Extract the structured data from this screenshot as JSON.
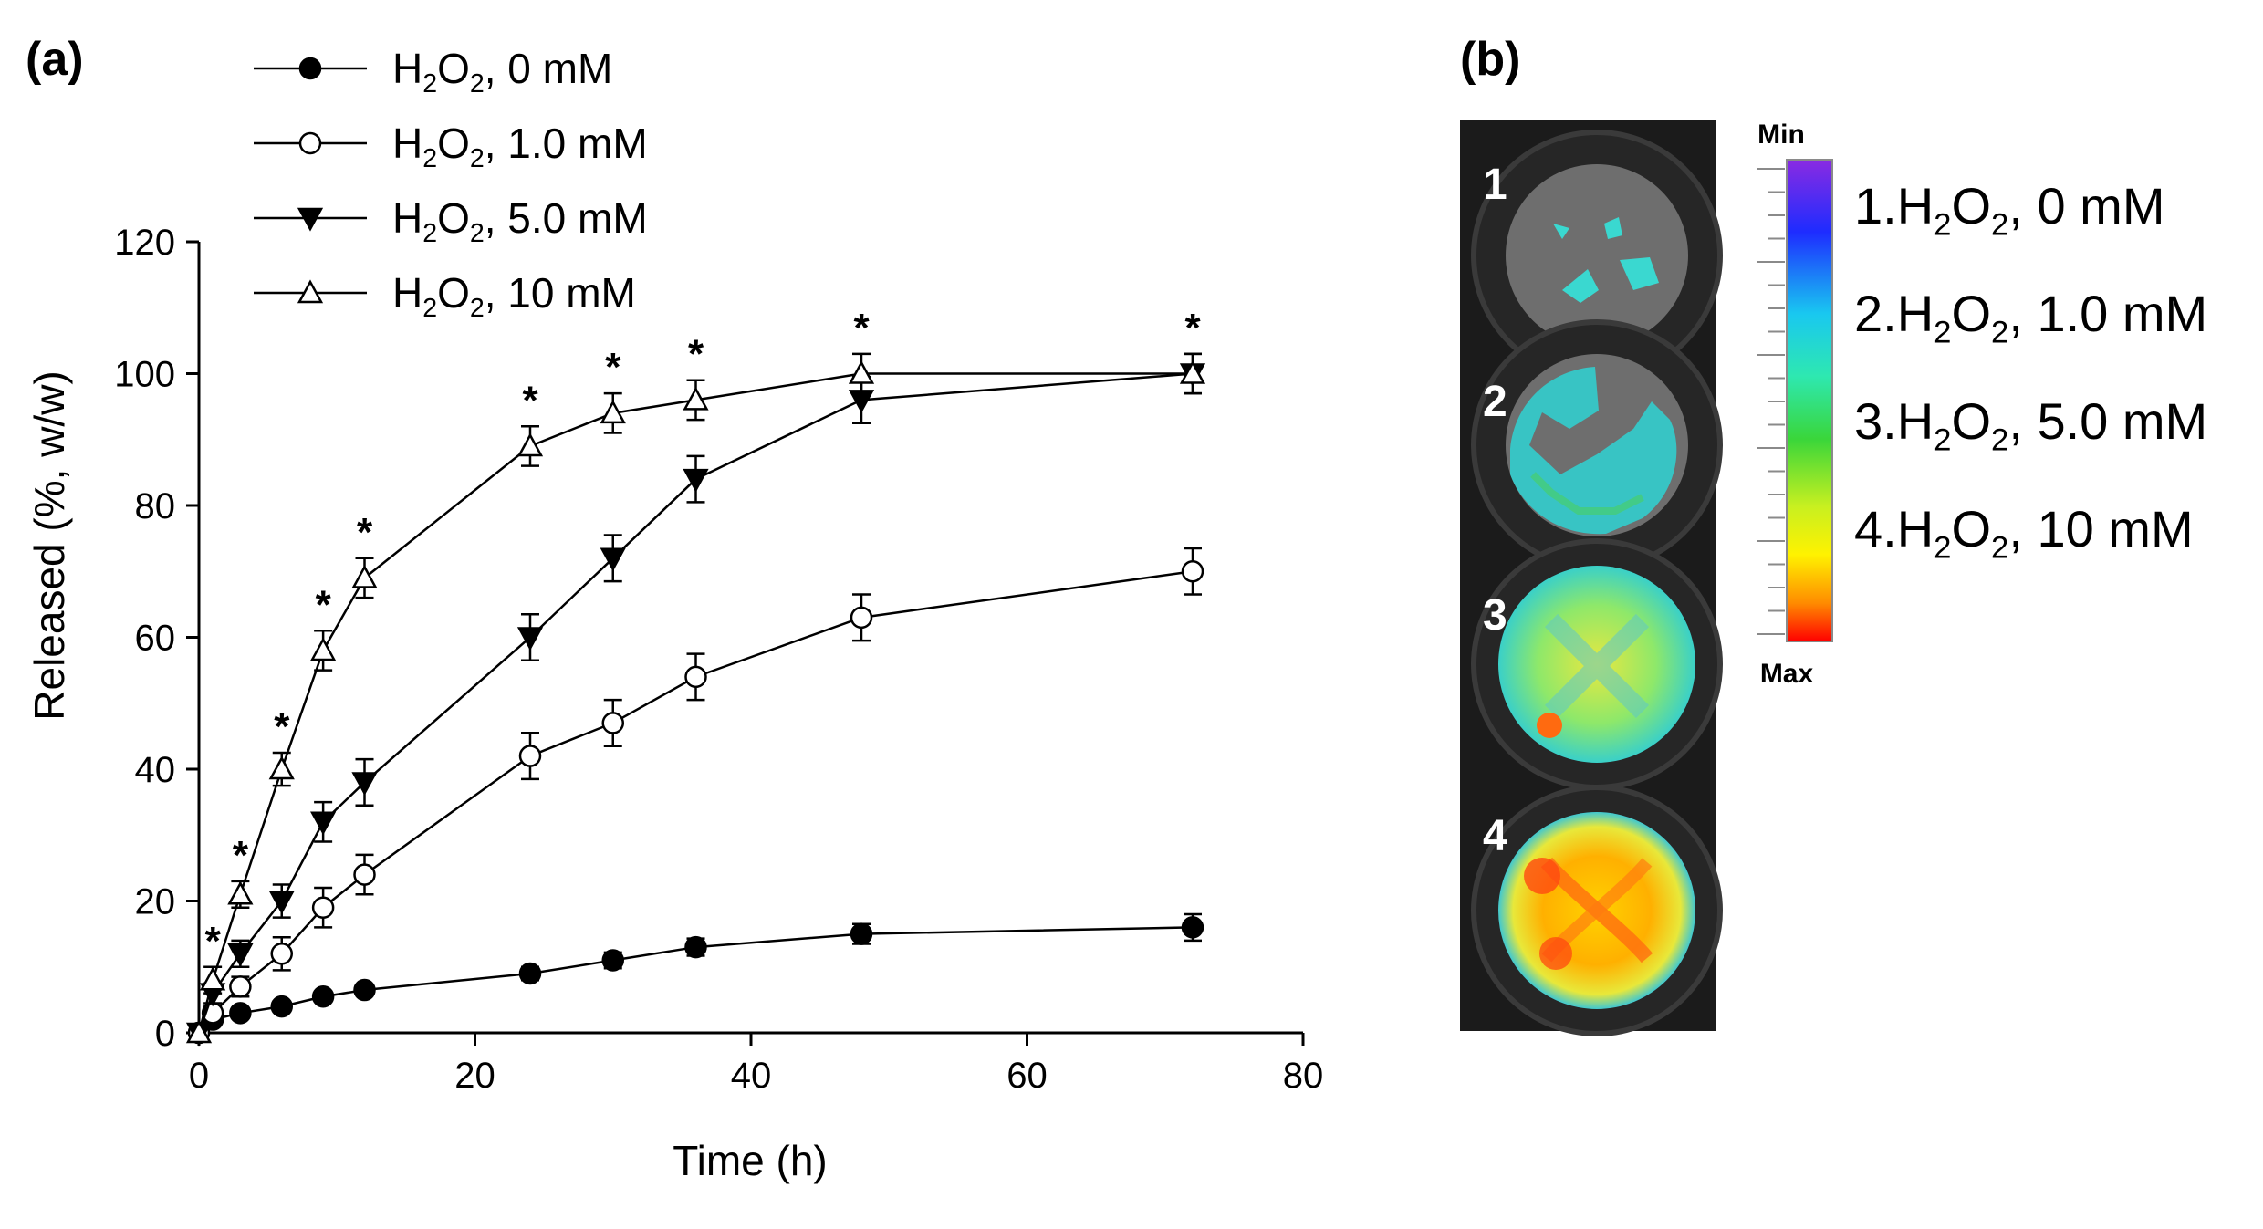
{
  "panel_a": {
    "label": "(a)",
    "legend": [
      {
        "chem_a": "H",
        "sub_a": "2",
        "chem_b": "O",
        "sub_b": "2",
        "suffix": ", 0 mM",
        "marker": "filled-circle"
      },
      {
        "chem_a": "H",
        "sub_a": "2",
        "chem_b": "O",
        "sub_b": "2",
        "suffix": ", 1.0 mM",
        "marker": "open-circle"
      },
      {
        "chem_a": "H",
        "sub_a": "2",
        "chem_b": "O",
        "sub_b": "2",
        "suffix": ", 5.0 mM",
        "marker": "filled-down-triangle"
      },
      {
        "chem_a": "H",
        "sub_a": "2",
        "chem_b": "O",
        "sub_b": "2",
        "suffix": ", 10 mM",
        "marker": "open-up-triangle"
      }
    ]
  },
  "panel_b": {
    "label": "(b)",
    "wells": [
      "1",
      "2",
      "3",
      "4"
    ],
    "colorbar": {
      "min_label": "Min",
      "max_label": "Max"
    },
    "legend": [
      {
        "num": "1.",
        "chem_a": "H",
        "sub_a": "2",
        "chem_b": "O",
        "sub_b": "2",
        "suffix": ", 0 mM"
      },
      {
        "num": "2.",
        "chem_a": "H",
        "sub_a": "2",
        "chem_b": "O",
        "sub_b": "2",
        "suffix": ", 1.0 mM"
      },
      {
        "num": "3.",
        "chem_a": "H",
        "sub_a": "2",
        "chem_b": "O",
        "sub_b": "2",
        "suffix": ", 5.0 mM"
      },
      {
        "num": "4.",
        "chem_a": "H",
        "sub_a": "2",
        "chem_b": "O",
        "sub_b": "2",
        "suffix": ", 10 mM"
      }
    ]
  },
  "chart_data": {
    "type": "line",
    "xlabel": "Time (h)",
    "ylabel": "Released (%, w/w)",
    "xlim": [
      0,
      80
    ],
    "ylim": [
      0,
      120
    ],
    "xticks": [
      0,
      20,
      40,
      60,
      80
    ],
    "yticks": [
      0,
      20,
      40,
      60,
      80,
      100,
      120
    ],
    "grid": false,
    "significance_marker": "*",
    "significance_x": [
      1,
      3,
      6,
      9,
      12,
      24,
      30,
      36,
      48,
      72
    ],
    "series": [
      {
        "name": "H2O2, 0 mM",
        "marker": "filled-circle",
        "x": [
          0,
          1,
          3,
          6,
          9,
          12,
          24,
          30,
          36,
          48,
          72
        ],
        "y": [
          0,
          2,
          3,
          4,
          5.5,
          6.5,
          9,
          11,
          13,
          15,
          16
        ],
        "err": [
          0,
          0.5,
          0.5,
          0.6,
          0.7,
          0.8,
          1,
          1.2,
          1.3,
          1.5,
          2
        ]
      },
      {
        "name": "H2O2, 1.0 mM",
        "marker": "open-circle",
        "x": [
          0,
          1,
          3,
          6,
          9,
          12,
          24,
          30,
          36,
          48,
          72
        ],
        "y": [
          0,
          3,
          7,
          12,
          19,
          24,
          42,
          47,
          54,
          63,
          70
        ],
        "err": [
          0,
          1,
          1.5,
          2.5,
          3,
          3,
          3.5,
          3.5,
          3.5,
          3.5,
          3.5
        ]
      },
      {
        "name": "H2O2, 5.0 mM",
        "marker": "filled-down-triangle",
        "x": [
          0,
          1,
          3,
          6,
          9,
          12,
          24,
          30,
          36,
          48,
          72
        ],
        "y": [
          0,
          6,
          12,
          20,
          32,
          38,
          60,
          72,
          84,
          96,
          100
        ],
        "err": [
          0,
          1.5,
          2,
          2.5,
          3,
          3.5,
          3.5,
          3.5,
          3.5,
          3.5,
          3
        ]
      },
      {
        "name": "H2O2, 10 mM",
        "marker": "open-up-triangle",
        "x": [
          0,
          1,
          3,
          6,
          9,
          12,
          24,
          30,
          36,
          48,
          72
        ],
        "y": [
          0,
          8,
          21,
          40,
          58,
          69,
          89,
          94,
          96,
          100,
          100
        ],
        "err": [
          0,
          2,
          2,
          2.5,
          3,
          3,
          3,
          3,
          3,
          3,
          3
        ]
      }
    ]
  },
  "colors": {
    "line": "#000000",
    "plate_bg": "#1b1b1b",
    "well_ring": "#2a2a2a",
    "well_inner": "#6a6a6a"
  }
}
